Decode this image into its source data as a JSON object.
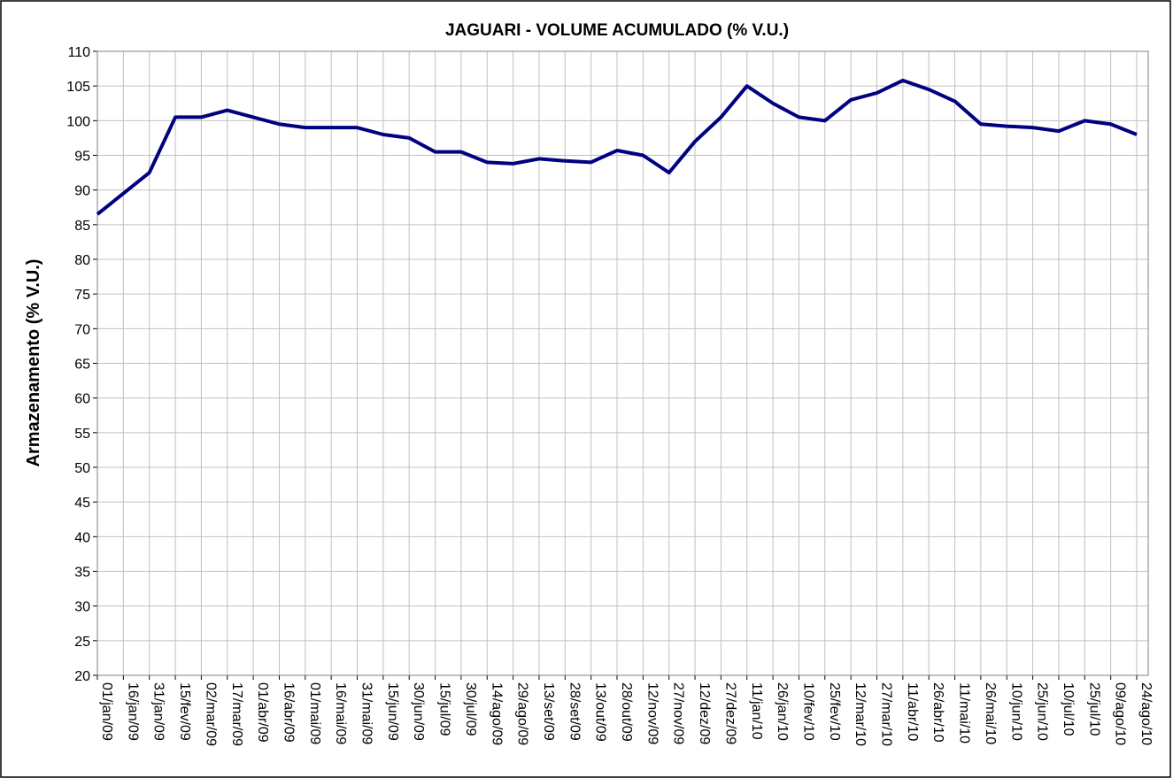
{
  "chart_data": {
    "type": "line",
    "title": "JAGUARI - VOLUME ACUMULADO (% V.U.)",
    "y_label": "Armazenamento (% V.U.)",
    "categories": [
      "01/jan/09",
      "16/jan/09",
      "31/jan/09",
      "15/fev/09",
      "02/mar/09",
      "17/mar/09",
      "01/abr/09",
      "16/abr/09",
      "01/mai/09",
      "16/mai/09",
      "31/mai/09",
      "15/jun/09",
      "30/jun/09",
      "15/jul/09",
      "30/jul/09",
      "14/ago/09",
      "29/ago/09",
      "13/set/09",
      "28/set/09",
      "13/out/09",
      "28/out/09",
      "12/nov/09",
      "27/nov/09",
      "12/dez/09",
      "27/dez/09",
      "11/jan/10",
      "26/jan/10",
      "10/fev/10",
      "25/fev/10",
      "12/mar/10",
      "27/mar/10",
      "11/abr/10",
      "26/abr/10",
      "11/mai/10",
      "26/mai/10",
      "10/jun/10",
      "25/jun/10",
      "10/jul/10",
      "25/jul/10",
      "09/ago/10",
      "24/ago/10"
    ],
    "values": [
      86.5,
      89.5,
      92.5,
      100.5,
      100.5,
      101.5,
      100.5,
      99.5,
      99,
      99,
      99,
      98,
      97.5,
      95.5,
      95.5,
      94,
      93.8,
      94.5,
      94.2,
      94,
      95.7,
      95,
      92.5,
      97,
      100.5,
      105,
      102.5,
      100.5,
      100,
      103,
      104,
      105.8,
      104.5,
      102.8,
      99.5,
      99.2,
      99,
      98.5,
      100,
      99.5,
      98
    ],
    "color": "#000080",
    "ylim": [
      20,
      110
    ],
    "yticks": [
      20,
      25,
      30,
      35,
      40,
      45,
      50,
      55,
      60,
      65,
      70,
      75,
      80,
      85,
      90,
      95,
      100,
      105,
      110
    ],
    "grid": true
  }
}
